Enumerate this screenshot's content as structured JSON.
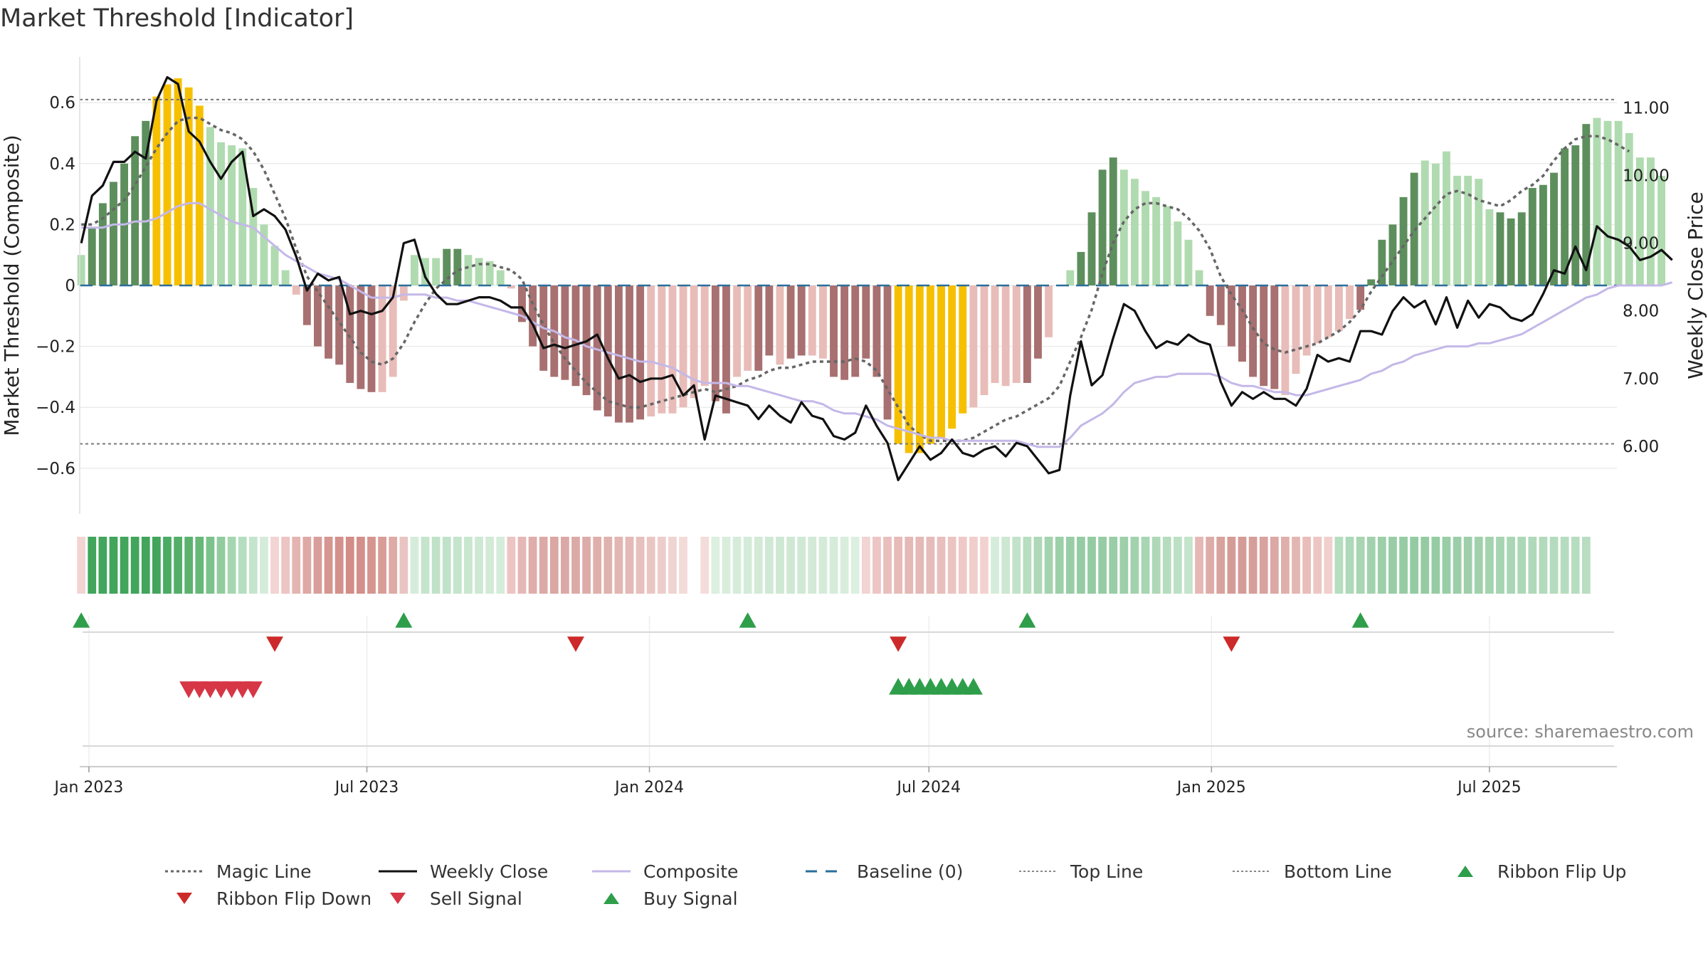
{
  "title": "Market Threshold [Indicator]",
  "source": "source: sharemaestro.com",
  "colors": {
    "bar_green_dark": "#5d8f5d",
    "bar_green_light": "#b0dbb0",
    "bar_red_dark": "#a87070",
    "bar_red_light": "#e8bcb8",
    "bar_yellow": "#f6c000",
    "weekly_close": "#111111",
    "composite": "#c4b8e8",
    "magic": "#666666",
    "baseline": "#2b6e9a",
    "signal_green": "#2e9e4a",
    "signal_red": "#d63645",
    "flip_red": "#cc2a2a"
  },
  "chart_data": {
    "type": "bar",
    "title": "Market Threshold [Indicator]",
    "ylabel": "Market Threshold (Composite)",
    "ylabel_right": "Weekly Close Price",
    "ylim": [
      -0.75,
      0.75
    ],
    "ylim_right": [
      5.0,
      11.75
    ],
    "yticks": [
      -0.6,
      -0.4,
      -0.2,
      0,
      0.2,
      0.4,
      0.6
    ],
    "ytick_labels": [
      "−0.6",
      "−0.4",
      "−0.2",
      "0",
      "0.2",
      "0.4",
      "0.6"
    ],
    "yticks_right": [
      6,
      7,
      8,
      9,
      10,
      11
    ],
    "ytick_labels_right": [
      "6.00",
      "7.00",
      "8.00",
      "9.00",
      "10.00",
      "11.00"
    ],
    "xlim": [
      "2022-12-26",
      "2025-09-22"
    ],
    "xticks": [
      "2023-01-01",
      "2023-07-01",
      "2024-01-01",
      "2024-07-01",
      "2025-01-01",
      "2025-07-01"
    ],
    "xtick_labels": [
      "Jan 2023",
      "Jul 2023",
      "Jan 2024",
      "Jul 2024",
      "Jan 2025",
      "Jul 2025"
    ],
    "top_line": 0.61,
    "bottom_line": -0.52,
    "baseline": 0,
    "weeks": {
      "start": "2022-12-27",
      "step_days": 7,
      "composite_bar": [
        0.1,
        0.19,
        0.27,
        0.34,
        0.4,
        0.49,
        0.54,
        0.62,
        0.66,
        0.68,
        0.65,
        0.59,
        0.52,
        0.47,
        0.46,
        0.45,
        0.32,
        0.2,
        0.13,
        0.05,
        -0.03,
        -0.13,
        -0.2,
        -0.24,
        -0.26,
        -0.32,
        -0.34,
        -0.35,
        -0.35,
        -0.3,
        -0.05,
        0.1,
        0.09,
        0.09,
        0.12,
        0.12,
        0.1,
        0.09,
        0.08,
        0.05,
        -0.01,
        -0.12,
        -0.2,
        -0.28,
        -0.3,
        -0.31,
        -0.33,
        -0.36,
        -0.41,
        -0.43,
        -0.45,
        -0.45,
        -0.44,
        -0.43,
        -0.42,
        -0.42,
        -0.4,
        -0.37,
        -0.33,
        -0.38,
        -0.42,
        -0.3,
        -0.28,
        -0.28,
        -0.23,
        -0.26,
        -0.24,
        -0.23,
        -0.23,
        -0.24,
        -0.3,
        -0.31,
        -0.3,
        -0.24,
        -0.3,
        -0.44,
        -0.52,
        -0.55,
        -0.55,
        -0.52,
        -0.5,
        -0.47,
        -0.42,
        -0.4,
        -0.36,
        -0.32,
        -0.33,
        -0.32,
        -0.32,
        -0.24,
        -0.17,
        0,
        0.05,
        0.11,
        0.24,
        0.38,
        0.42,
        0.38,
        0.35,
        0.31,
        0.29,
        0.26,
        0.21,
        0.15,
        0.05,
        -0.1,
        -0.13,
        -0.2,
        -0.25,
        -0.3,
        -0.33,
        -0.34,
        -0.36,
        -0.29,
        -0.23,
        -0.19,
        -0.17,
        -0.15,
        -0.11,
        -0.08,
        0.02,
        0.15,
        0.2,
        0.29,
        0.37,
        0.41,
        0.4,
        0.44,
        0.36,
        0.36,
        0.35,
        0.25,
        0.24,
        0.22,
        0.24,
        0.32,
        0.33,
        0.37,
        0.45,
        0.46,
        0.53,
        0.55,
        0.54,
        0.54,
        0.5,
        0.42,
        0.42,
        0.36
      ],
      "bar_shade": [
        "l",
        "d",
        "d",
        "d",
        "d",
        "d",
        "d",
        "y",
        "y",
        "y",
        "y",
        "y",
        "l",
        "l",
        "l",
        "l",
        "l",
        "l",
        "l",
        "l",
        "l",
        "d",
        "d",
        "d",
        "d",
        "d",
        "d",
        "d",
        "l",
        "l",
        "l",
        "l",
        "l",
        "l",
        "d",
        "d",
        "l",
        "l",
        "l",
        "l",
        "l",
        "d",
        "d",
        "d",
        "d",
        "d",
        "d",
        "d",
        "d",
        "d",
        "d",
        "d",
        "d",
        "l",
        "l",
        "l",
        "l",
        "l",
        "l",
        "d",
        "d",
        "l",
        "l",
        "d",
        "d",
        "l",
        "d",
        "d",
        "l",
        "l",
        "d",
        "d",
        "d",
        "d",
        "d",
        "d",
        "y",
        "y",
        "y",
        "y",
        "y",
        "y",
        "y",
        "l",
        "l",
        "l",
        "l",
        "l",
        "d",
        "d",
        "l",
        "l",
        "l",
        "d",
        "d",
        "d",
        "d",
        "l",
        "l",
        "l",
        "l",
        "l",
        "l",
        "l",
        "l",
        "d",
        "d",
        "d",
        "d",
        "d",
        "d",
        "d",
        "l",
        "l",
        "l",
        "l",
        "l",
        "l",
        "l",
        "d",
        "d",
        "d",
        "d",
        "d",
        "d",
        "l",
        "l",
        "l",
        "l",
        "l",
        "l",
        "l",
        "d",
        "d",
        "d",
        "d",
        "d",
        "d",
        "d",
        "d",
        "d",
        "l",
        "l",
        "l",
        "l"
      ],
      "weekly_close": [
        9.0,
        9.7,
        9.85,
        10.2,
        10.2,
        10.35,
        10.25,
        11.1,
        11.45,
        11.35,
        10.65,
        10.5,
        10.2,
        9.95,
        10.2,
        10.35,
        9.4,
        9.5,
        9.4,
        9.2,
        8.8,
        8.3,
        8.55,
        8.45,
        8.5,
        7.95,
        8.0,
        7.95,
        8.0,
        8.2,
        9.0,
        9.05,
        8.5,
        8.25,
        8.1,
        8.1,
        8.15,
        8.2,
        8.2,
        8.15,
        8.05,
        8.05,
        7.8,
        7.45,
        7.5,
        7.45,
        7.5,
        7.55,
        7.65,
        7.3,
        7.0,
        7.05,
        6.95,
        7.0,
        7.0,
        7.05,
        6.75,
        6.9,
        6.1,
        6.75,
        6.7,
        6.65,
        6.6,
        6.4,
        6.6,
        6.45,
        6.35,
        6.65,
        6.45,
        6.4,
        6.15,
        6.1,
        6.2,
        6.6,
        6.3,
        6.05,
        5.5,
        5.75,
        6.0,
        5.8,
        5.9,
        6.1,
        5.9,
        5.85,
        5.95,
        6.0,
        5.85,
        6.05,
        6.0,
        5.8,
        5.6,
        5.65,
        6.75,
        7.55,
        6.9,
        7.05,
        7.6,
        8.1,
        8.0,
        7.7,
        7.45,
        7.55,
        7.5,
        7.65,
        7.55,
        7.5,
        6.95,
        6.6,
        6.8,
        6.7,
        6.8,
        6.7,
        6.7,
        6.6,
        6.85,
        7.35,
        7.25,
        7.3,
        7.25,
        7.7,
        7.7,
        7.65,
        8.0,
        8.2,
        8.05,
        8.15,
        7.8,
        8.2,
        7.75,
        8.15,
        7.9,
        8.1,
        8.05,
        7.9,
        7.85,
        7.95,
        8.25,
        8.6,
        8.55,
        8.95,
        8.6,
        9.25,
        9.1,
        9.05,
        8.95,
        8.75,
        8.8,
        8.9,
        8.75
      ],
      "composite_line": [
        0.19,
        0.19,
        0.19,
        0.2,
        0.2,
        0.21,
        0.21,
        0.22,
        0.24,
        0.26,
        0.27,
        0.27,
        0.25,
        0.23,
        0.21,
        0.2,
        0.19,
        0.16,
        0.13,
        0.1,
        0.08,
        0.06,
        0.04,
        0.03,
        0.02,
        0.0,
        -0.02,
        -0.04,
        -0.04,
        -0.04,
        -0.03,
        -0.03,
        -0.03,
        -0.04,
        -0.04,
        -0.05,
        -0.05,
        -0.06,
        -0.07,
        -0.08,
        -0.09,
        -0.1,
        -0.12,
        -0.14,
        -0.15,
        -0.17,
        -0.18,
        -0.2,
        -0.21,
        -0.22,
        -0.23,
        -0.24,
        -0.25,
        -0.25,
        -0.26,
        -0.27,
        -0.29,
        -0.31,
        -0.32,
        -0.32,
        -0.32,
        -0.33,
        -0.33,
        -0.34,
        -0.35,
        -0.36,
        -0.37,
        -0.38,
        -0.38,
        -0.39,
        -0.41,
        -0.42,
        -0.42,
        -0.43,
        -0.44,
        -0.46,
        -0.47,
        -0.48,
        -0.49,
        -0.5,
        -0.5,
        -0.51,
        -0.51,
        -0.51,
        -0.51,
        -0.51,
        -0.51,
        -0.51,
        -0.52,
        -0.53,
        -0.53,
        -0.53,
        -0.5,
        -0.46,
        -0.44,
        -0.42,
        -0.39,
        -0.35,
        -0.32,
        -0.31,
        -0.3,
        -0.3,
        -0.29,
        -0.29,
        -0.29,
        -0.29,
        -0.3,
        -0.32,
        -0.33,
        -0.33,
        -0.34,
        -0.35,
        -0.35,
        -0.36,
        -0.36,
        -0.35,
        -0.34,
        -0.33,
        -0.32,
        -0.31,
        -0.29,
        -0.28,
        -0.26,
        -0.25,
        -0.23,
        -0.22,
        -0.21,
        -0.2,
        -0.2,
        -0.2,
        -0.19,
        -0.19,
        -0.18,
        -0.17,
        -0.16,
        -0.14,
        -0.12,
        -0.1,
        -0.08,
        -0.06,
        -0.04,
        -0.03,
        -0.01,
        0.0,
        0.0,
        0.0,
        0.0,
        0.0,
        0.01
      ],
      "magic_line": [
        0.2,
        0.2,
        0.22,
        0.25,
        0.28,
        0.33,
        0.39,
        0.45,
        0.5,
        0.54,
        0.55,
        0.55,
        0.53,
        0.51,
        0.5,
        0.48,
        0.44,
        0.38,
        0.3,
        0.22,
        0.12,
        0.03,
        -0.02,
        -0.07,
        -0.12,
        -0.17,
        -0.22,
        -0.25,
        -0.26,
        -0.24,
        -0.19,
        -0.12,
        -0.06,
        -0.01,
        0.02,
        0.05,
        0.06,
        0.07,
        0.07,
        0.06,
        0.05,
        0.02,
        -0.06,
        -0.13,
        -0.19,
        -0.24,
        -0.28,
        -0.32,
        -0.35,
        -0.38,
        -0.39,
        -0.4,
        -0.4,
        -0.39,
        -0.38,
        -0.37,
        -0.36,
        -0.35,
        -0.34,
        -0.35,
        -0.34,
        -0.33,
        -0.31,
        -0.3,
        -0.28,
        -0.27,
        -0.27,
        -0.26,
        -0.25,
        -0.25,
        -0.25,
        -0.25,
        -0.24,
        -0.25,
        -0.28,
        -0.34,
        -0.4,
        -0.46,
        -0.49,
        -0.51,
        -0.51,
        -0.51,
        -0.51,
        -0.5,
        -0.48,
        -0.46,
        -0.44,
        -0.43,
        -0.41,
        -0.39,
        -0.37,
        -0.33,
        -0.25,
        -0.17,
        -0.08,
        0.04,
        0.14,
        0.21,
        0.25,
        0.27,
        0.27,
        0.26,
        0.25,
        0.22,
        0.18,
        0.12,
        0.03,
        -0.03,
        -0.08,
        -0.14,
        -0.19,
        -0.21,
        -0.22,
        -0.21,
        -0.2,
        -0.19,
        -0.17,
        -0.15,
        -0.12,
        -0.08,
        -0.02,
        0.03,
        0.08,
        0.13,
        0.18,
        0.22,
        0.26,
        0.3,
        0.31,
        0.3,
        0.28,
        0.27,
        0.26,
        0.28,
        0.31,
        0.33,
        0.36,
        0.41,
        0.45,
        0.48,
        0.49,
        0.49,
        0.48,
        0.46,
        0.44
      ]
    },
    "ribbon": {
      "start": "2022-12-27",
      "step_days": 7,
      "colors": [
        "#f2d4d3",
        "#41a55c",
        "#41a55c",
        "#41a55c",
        "#41a55c",
        "#41a55c",
        "#41a55c",
        "#41a55c",
        "#4aab63",
        "#53ae68",
        "#5bb26f",
        "#66b879",
        "#7cc28c",
        "#92cc9e",
        "#a6d6b1",
        "#b5ddbf",
        "#c5e4cc",
        "#d6ecdb",
        "#f2d4d3",
        "#ecc4c2",
        "#e4b4b1",
        "#dea8a4",
        "#d99e9a",
        "#d69691",
        "#d4908b",
        "#d38c87",
        "#d48f8a",
        "#d6958f",
        "#d99d98",
        "#ddaaa5",
        "#e8c5c2",
        "#d6ecdb",
        "#c5e4cc",
        "#c0e2c8",
        "#c0e2c8",
        "#c5e4cc",
        "#c9e6cf",
        "#cde8d3",
        "#d2ead6",
        "#d6ecdb",
        "#ecc4c2",
        "#e5b8b5",
        "#dfaeaa",
        "#dcaaa6",
        "#daa7a3",
        "#dba9a5",
        "#dcaaa6",
        "#ddaca8",
        "#dfafab",
        "#e0b2ae",
        "#e2b6b2",
        "#e4b9b6",
        "#e7bfbc",
        "#eac6c3",
        "#edcdcb",
        "#f0d4d2",
        "#f3dbd9",
        "#ffffff",
        "#f4dcda",
        "#dcefe0",
        "#d9eddd",
        "#d6ecdb",
        "#d4ebd9",
        "#d2ead7",
        "#d0e9d5",
        "#cfe8d4",
        "#cfe8d4",
        "#d0e9d5",
        "#d2ead7",
        "#d4ebd9",
        "#d6ecdb",
        "#d9eddd",
        "#dcefe0",
        "#f2d4d3",
        "#ecc6c4",
        "#e8bfbd",
        "#e6bbb8",
        "#e4b9b6",
        "#e4b9b6",
        "#e6bbb8",
        "#e8bfbd",
        "#ebc4c2",
        "#eec9c7",
        "#f0cecc",
        "#f2d2d0",
        "#d6ecdb",
        "#cce7d2",
        "#c2e2c9",
        "#b8ddc1",
        "#aed8b8",
        "#a4d3b0",
        "#9dcfa9",
        "#99cda6",
        "#96cca4",
        "#95cba3",
        "#96cca4",
        "#99cda6",
        "#9dcfa9",
        "#a2d2ad",
        "#a8d5b2",
        "#aed8b8",
        "#b5dcbe",
        "#bce0c4",
        "#c4e4cb",
        "#e5b8b5",
        "#ddaca8",
        "#d8a29d",
        "#d59c97",
        "#d59b96",
        "#d69e99",
        "#d8a39e",
        "#dba8a4",
        "#dfafab",
        "#e3b6b2",
        "#e8bdba",
        "#edc6c4",
        "#f1cfcd",
        "#b5ddbf",
        "#aed9b8",
        "#a8d5b2",
        "#a2d2ad",
        "#9dcfa9",
        "#99cda6",
        "#96cca4",
        "#95cba3",
        "#95cba3",
        "#96cca4",
        "#98cda5",
        "#9bcea8",
        "#9ecfaa",
        "#a1d1ac",
        "#a4d3b0",
        "#a7d4b2",
        "#aad6b5",
        "#add8b7",
        "#b0d9ba",
        "#b2dabc",
        "#b4dbbe",
        "#b6dcbf",
        "#b7ddc0",
        "#b8ddc1"
      ]
    },
    "markers": {
      "ribbon_flip_up": [
        "2022-12-27",
        "2023-07-25",
        "2024-03-05",
        "2024-09-03",
        "2025-04-08"
      ],
      "ribbon_flip_down": [
        "2023-05-02",
        "2023-11-14",
        "2024-06-11",
        "2025-01-14"
      ],
      "sell_signal": [
        "2023-03-07",
        "2023-03-14",
        "2023-03-21",
        "2023-03-28",
        "2023-04-04",
        "2023-04-11",
        "2023-04-18"
      ],
      "buy_signal": [
        "2024-06-11",
        "2024-06-18",
        "2024-06-25",
        "2024-07-02",
        "2024-07-09",
        "2024-07-16",
        "2024-07-23",
        "2024-07-30"
      ]
    }
  },
  "legend": [
    {
      "label": "Magic Line",
      "type": "dotted",
      "color": "#666666"
    },
    {
      "label": "Weekly Close",
      "type": "solid",
      "color": "#111111"
    },
    {
      "label": "Composite",
      "type": "solid",
      "color": "#c4b8e8"
    },
    {
      "label": "Baseline (0)",
      "type": "dashed",
      "color": "#2b6e9a"
    },
    {
      "label": "Top Line",
      "type": "finedash",
      "color": "#888888"
    },
    {
      "label": "Bottom Line",
      "type": "finedash",
      "color": "#888888"
    },
    {
      "label": "Ribbon Flip Up",
      "type": "tri-up",
      "color": "#2e9e4a"
    },
    {
      "label": "Ribbon Flip Down",
      "type": "tri-down",
      "color": "#cc2a2a"
    },
    {
      "label": "Sell Signal",
      "type": "tri-down",
      "color": "#d63645"
    },
    {
      "label": "Buy Signal",
      "type": "tri-up",
      "color": "#2e9e4a"
    }
  ]
}
